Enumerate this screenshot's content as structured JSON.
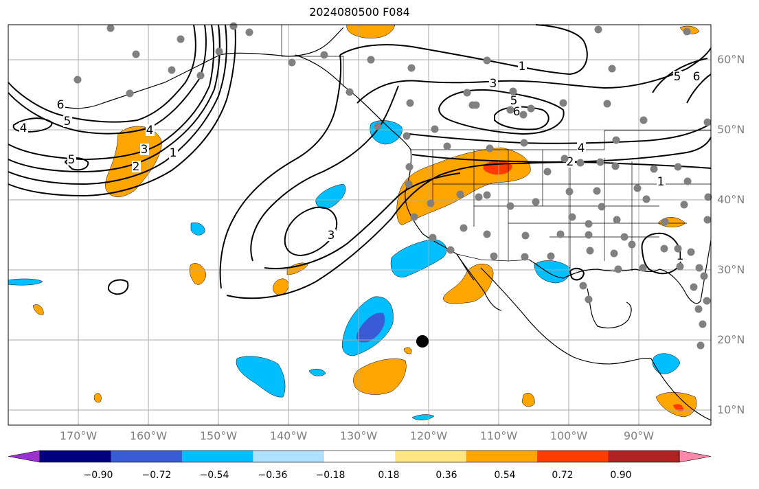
{
  "title": "2024080500 F084",
  "lat_labels": [
    "60°N",
    "50°N",
    "40°N",
    "30°N",
    "20°N",
    "10°N"
  ],
  "lon_labels": [
    "170°W",
    "160°W",
    "150°W",
    "140°W",
    "130°W",
    "120°W",
    "110°W",
    "100°W",
    "90°W"
  ],
  "colorbar": {
    "tick_labels": [
      "−0.90",
      "−0.72",
      "−0.54",
      "−0.36",
      "−0.18",
      "0.18",
      "0.36",
      "0.54",
      "0.72",
      "0.90"
    ],
    "colors": [
      "#9b30d0",
      "#000080",
      "#3a5bd6",
      "#00bfff",
      "#aee0ff",
      "#ffffff",
      "#ffe680",
      "#ffa500",
      "#ff3c00",
      "#b22222",
      "#ff88aa"
    ]
  },
  "contour_labels": [
    "6",
    "5",
    "4",
    "5",
    "4",
    "3",
    "2",
    "1",
    "3",
    "1",
    "3",
    "5",
    "6",
    "5",
    "6",
    "4",
    "2",
    "1",
    "1"
  ],
  "colors": {
    "anomaly_orange": "#ffa500",
    "anomaly_red": "#ff3c00",
    "anomaly_blue": "#00bfff",
    "anomaly_dark_blue": "#3a5bd6",
    "station_dot": "#808080",
    "gridline": "#aaaaaa",
    "axis_label": "#808080"
  }
}
